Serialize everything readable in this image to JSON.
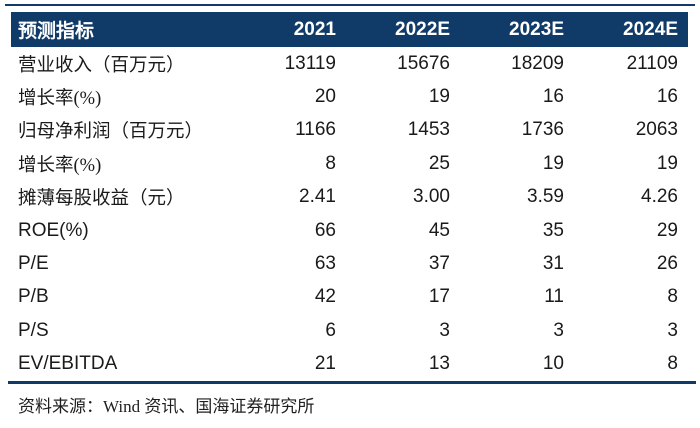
{
  "colors": {
    "header_bg": "#103A67",
    "header_text": "#FFFFFF",
    "rule": "#103A67",
    "body_text": "#1A1A1A"
  },
  "table": {
    "header": {
      "label": "预测指标",
      "columns": [
        "2021",
        "2022E",
        "2023E",
        "2024E"
      ]
    },
    "rows": [
      {
        "label": "营业收入（百万元）",
        "cn": true,
        "values": [
          "13119",
          "15676",
          "18209",
          "21109"
        ]
      },
      {
        "label": "增长率(%)",
        "cn": true,
        "values": [
          "20",
          "19",
          "16",
          "16"
        ]
      },
      {
        "label": "归母净利润（百万元）",
        "cn": true,
        "values": [
          "1166",
          "1453",
          "1736",
          "2063"
        ]
      },
      {
        "label": "增长率(%)",
        "cn": true,
        "values": [
          "8",
          "25",
          "19",
          "19"
        ]
      },
      {
        "label": "摊薄每股收益（元）",
        "cn": true,
        "values": [
          "2.41",
          "3.00",
          "3.59",
          "4.26"
        ]
      },
      {
        "label": "ROE(%)",
        "cn": false,
        "values": [
          "66",
          "45",
          "35",
          "29"
        ]
      },
      {
        "label": "P/E",
        "cn": false,
        "values": [
          "63",
          "37",
          "31",
          "26"
        ]
      },
      {
        "label": "P/B",
        "cn": false,
        "values": [
          "42",
          "17",
          "11",
          "8"
        ]
      },
      {
        "label": "P/S",
        "cn": false,
        "values": [
          "6",
          "3",
          "3",
          "3"
        ]
      },
      {
        "label": "EV/EBITDA",
        "cn": false,
        "values": [
          "21",
          "13",
          "10",
          "8"
        ]
      }
    ]
  },
  "footer": {
    "source": "资料来源：Wind 资讯、国海证券研究所"
  }
}
